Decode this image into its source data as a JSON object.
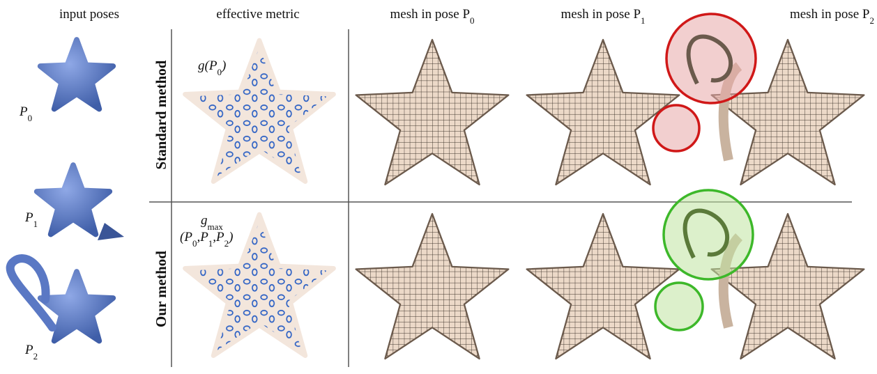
{
  "column_headers": [
    [
      "input poses"
    ],
    [
      "effective metric"
    ],
    [
      "mesh in pose P",
      "0"
    ],
    [
      "mesh in pose P",
      "1"
    ],
    [
      "mesh in pose P",
      "2"
    ]
  ],
  "pose_labels": [
    [
      "P",
      "0"
    ],
    [
      "P",
      "1"
    ],
    [
      "P",
      "2"
    ]
  ],
  "row_labels": [
    "Standard method",
    "Our method"
  ],
  "metric_labels": [
    [
      [
        "g(P",
        "0",
        ")"
      ]
    ],
    [
      [
        "g",
        "max"
      ],
      [
        "(P",
        "0",
        ",P",
        "1",
        ",P",
        "2",
        ")"
      ]
    ]
  ]
}
